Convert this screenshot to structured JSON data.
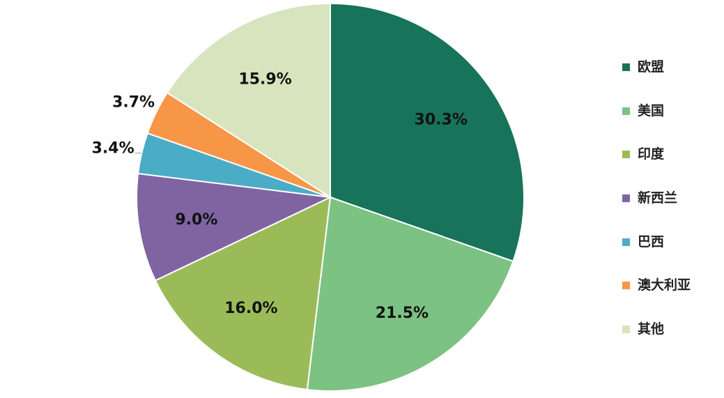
{
  "chart_data": {
    "type": "pie",
    "start": "top",
    "direction": "clockwise",
    "legend_position": "right",
    "slices": [
      {
        "name": "欧盟",
        "value": 30.3,
        "label": "30.3%",
        "color": "#17735a"
      },
      {
        "name": "美国",
        "value": 21.5,
        "label": "21.5%",
        "color": "#7cc283"
      },
      {
        "name": "印度",
        "value": 16.0,
        "label": "16.0%",
        "color": "#9bbb59"
      },
      {
        "name": "新西兰",
        "value": 9.0,
        "label": "9.0%",
        "color": "#8064a2"
      },
      {
        "name": "巴西",
        "value": 3.4,
        "label": "3.4%",
        "color": "#4bacc6"
      },
      {
        "name": "澳大利亚",
        "value": 3.7,
        "label": "3.7%",
        "color": "#f79646"
      },
      {
        "name": "其他",
        "value": 15.9,
        "label": "15.9%",
        "color": "#d7e4bd"
      }
    ]
  }
}
